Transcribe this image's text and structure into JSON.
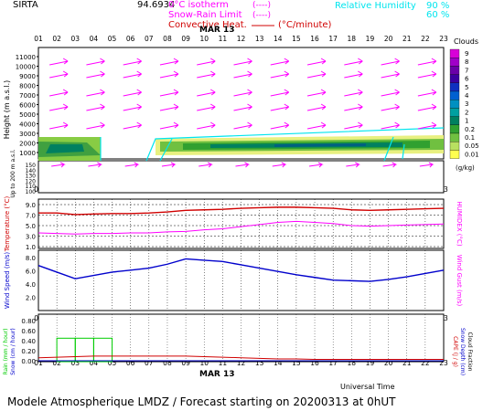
{
  "header": {
    "site": "SIRTA",
    "coord": "94.6934",
    "legend_0c": "0°C isotherm",
    "legend_0c_sym": "(----)",
    "legend_snow": "Snow-Rain Limit",
    "legend_snow_sym": "(----)",
    "legend_conv": "Convective Heat.",
    "legend_conv_unit": "(°C/minute)",
    "legend_rh": "Relative Humidity",
    "rh_90": "90 %",
    "rh_60": "60 %"
  },
  "hours": [
    "01",
    "02",
    "03",
    "04",
    "05",
    "06",
    "07",
    "08",
    "09",
    "10",
    "11",
    "12",
    "13",
    "14",
    "15",
    "16",
    "17",
    "18",
    "19",
    "20",
    "21",
    "22",
    "23"
  ],
  "date_label": "MAR 13",
  "footer": {
    "universal_time": "Universal Time",
    "title": "Modele Atmospherique LMDZ / Forecast starting on 20200313 at 0hUT"
  },
  "colors": {
    "magenta": "#ff00ff",
    "red": "#d00000",
    "blue": "#0000cc",
    "green": "#00cc00",
    "cyan": "#00e5ee"
  },
  "chart_data": [
    {
      "type": "heatmap",
      "title": "Clouds",
      "ylabel": "Height (m a.s.l.)",
      "ylabel_low": "Up to 200 m a.s.l.",
      "yticks_upper": [
        "11000",
        "10000",
        "9000",
        "8000",
        "7000",
        "6000",
        "5000",
        "4000",
        "3000",
        "2000",
        "1000"
      ],
      "yticks_lower": [
        "150",
        "140",
        "130",
        "120",
        "110",
        "100"
      ],
      "colorbar": {
        "label": "Clouds",
        "unit": "(g/kg)",
        "ticks": [
          "9",
          "8",
          "7",
          "6",
          "5",
          "4",
          "3",
          "2",
          "1",
          "0.2",
          "0.1",
          "0.05",
          "0.01"
        ],
        "colors": [
          "#d800d8",
          "#a000c8",
          "#6a00a8",
          "#3c00a0",
          "#1030c0",
          "#0060d0",
          "#0090c0",
          "#00a0a0",
          "#008060",
          "#30a030",
          "#70c040",
          "#b8e060",
          "#ffff50"
        ]
      },
      "wind_barbs": true
    },
    {
      "type": "line",
      "ylabel": "Temperature (°C)",
      "ylabel_right": "HUMIDEX (°C)",
      "yticks": [
        "9.0",
        "7.0",
        "5.0",
        "3.0",
        "1.0"
      ],
      "ylim": [
        1,
        9
      ],
      "series": [
        {
          "values": [
            7.4,
            7.4,
            7.1,
            7.2,
            7.3,
            7.3,
            7.4,
            7.6,
            7.9,
            8.0,
            8.1,
            8.3,
            8.4,
            8.5,
            8.5,
            8.4,
            8.3,
            8.0,
            7.9,
            8.0,
            8.1,
            8.2,
            8.3
          ]
        },
        {
          "values": [
            3.6,
            3.5,
            3.4,
            3.5,
            3.5,
            3.6,
            3.6,
            3.8,
            3.9,
            4.2,
            4.4,
            4.8,
            5.2,
            5.6,
            5.8,
            5.6,
            5.4,
            5.0,
            4.9,
            5.0,
            5.1,
            5.2,
            5.3
          ]
        }
      ]
    },
    {
      "type": "line",
      "ylabel": "Wind Speed (m/s)",
      "ylabel_right": "Wind Gust (m/s)",
      "yticks": [
        "8.0",
        "6.0",
        "4.0",
        "2.0"
      ],
      "ylim": [
        1,
        9
      ],
      "series": [
        {
          "values": [
            6.8,
            5.8,
            4.8,
            5.3,
            5.8,
            6.1,
            6.4,
            7.0,
            7.8,
            7.6,
            7.4,
            6.9,
            6.4,
            5.9,
            5.4,
            5.0,
            4.6,
            4.5,
            4.4,
            4.7,
            5.1,
            5.6,
            6.1
          ]
        }
      ]
    },
    {
      "type": "line",
      "ylabel": "Rain (mm / hour)",
      "ylabel_2": "Snow (cm / hour)",
      "ylabel_right": "CAPE (J / g)",
      "ylabel_right_2": "Snow Depth (cm)",
      "ylabel_right_3": "Cloud Fraction",
      "yticks": [
        "0.80",
        "0.60",
        "0.40",
        "0.20",
        "0.00"
      ],
      "ylim": [
        0,
        0.85
      ],
      "series": [
        {
          "values": [
            0.0,
            0.42,
            0.42,
            0.42,
            0.0,
            0.0,
            0.0,
            0.0,
            0.0,
            0.0,
            0.0,
            0.0,
            0.0,
            0.0,
            0.0,
            0.0,
            0.0,
            0.0,
            0.0,
            0.0,
            0.0,
            0.0,
            0.0
          ]
        },
        {
          "values": [
            0.07,
            0.08,
            0.09,
            0.1,
            0.1,
            0.1,
            0.1,
            0.1,
            0.1,
            0.09,
            0.08,
            0.07,
            0.06,
            0.05,
            0.05,
            0.04,
            0.04,
            0.04,
            0.04,
            0.04,
            0.04,
            0.04,
            0.04
          ]
        }
      ]
    }
  ]
}
